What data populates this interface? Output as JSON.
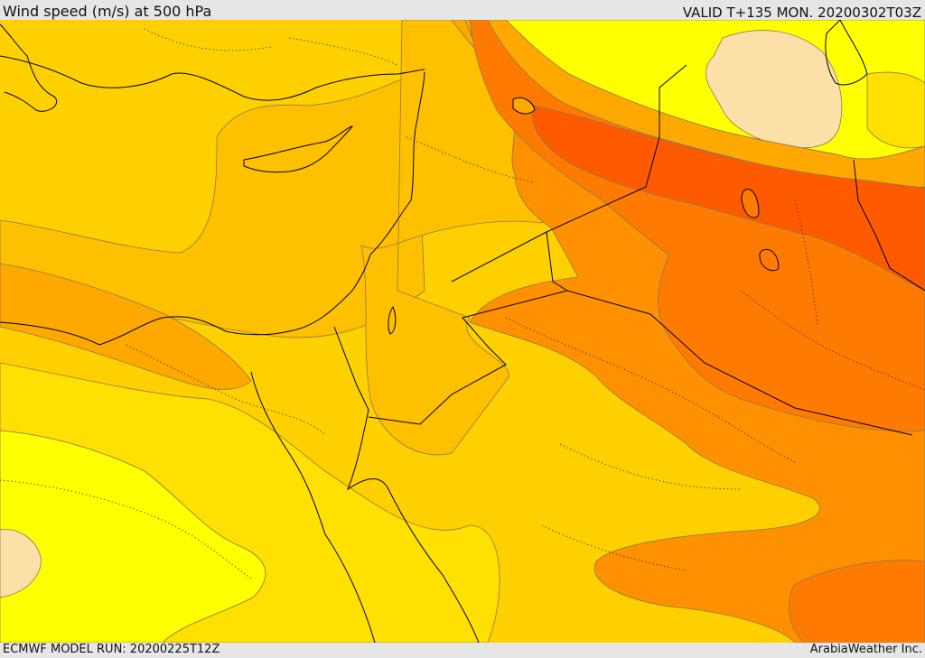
{
  "header": {
    "title": "Wind speed (m/s) at 500 hPa",
    "valid": "VALID T+135 MON. 20200302T03Z"
  },
  "footer": {
    "model_run": "ECMWF MODEL RUN: 20200225T12Z",
    "credit": "ArabiaWeather Inc."
  },
  "map": {
    "colors": {
      "pale": "#fde0a8",
      "yellow": "#ffff00",
      "gold": "#ffe000",
      "amber": "#ffc000",
      "orange_light": "#ffa800",
      "orange": "#ff9000",
      "orange_dark": "#ff7a00",
      "red_orange": "#ff5a00",
      "contour": "#8a7a55",
      "border": "#000000"
    }
  }
}
